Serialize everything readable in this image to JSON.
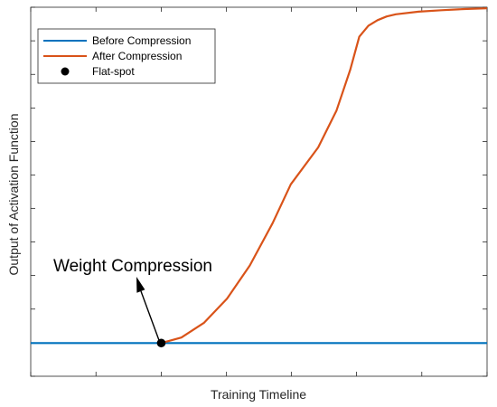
{
  "chart_data": {
    "type": "line",
    "title": "",
    "xlabel": "Training Timeline",
    "ylabel": "Output of Activation Function",
    "xlim": [
      0,
      1
    ],
    "ylim": [
      0,
      1
    ],
    "x_ticks": [
      0,
      0.143,
      0.286,
      0.429,
      0.571,
      0.714,
      0.857,
      1
    ],
    "y_ticks": [
      0,
      0.091,
      0.182,
      0.273,
      0.364,
      0.455,
      0.545,
      0.636,
      0.727,
      0.818,
      0.909,
      1
    ],
    "tick_labels_shown": false,
    "grid": false,
    "legend_position": "top-left",
    "series": [
      {
        "name": "Before Compression",
        "color": "#0072BD",
        "x": [
          0,
          1
        ],
        "y": [
          0.09,
          0.09
        ]
      },
      {
        "name": "After Compression",
        "color": "#D95319",
        "x": [
          0.286,
          0.33,
          0.38,
          0.43,
          0.48,
          0.53,
          0.57,
          0.63,
          0.67,
          0.7,
          0.72,
          0.74,
          0.76,
          0.78,
          0.8,
          0.85,
          0.9,
          0.95,
          1.0
        ],
        "y": [
          0.09,
          0.105,
          0.145,
          0.21,
          0.3,
          0.415,
          0.52,
          0.62,
          0.72,
          0.83,
          0.92,
          0.95,
          0.965,
          0.975,
          0.981,
          0.988,
          0.992,
          0.995,
          0.997
        ]
      }
    ],
    "markers": [
      {
        "name": "Flat-spot",
        "color": "#000000",
        "x": 0.286,
        "y": 0.09
      }
    ],
    "annotation": {
      "text": "Weight Compression"
    }
  }
}
